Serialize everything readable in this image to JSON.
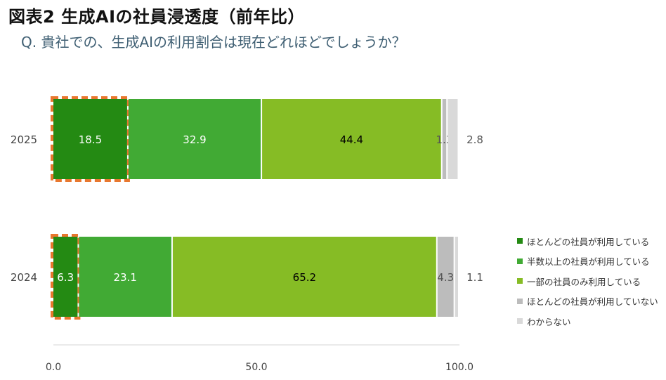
{
  "title": "図表2 生成AIの社員浸透度（前年比）",
  "subtitle": "Q. 貴社での、生成AIの利用割合は現在どれほどでしょうか？",
  "chart_data": {
    "type": "bar",
    "orientation": "horizontal",
    "stacked": true,
    "categories": [
      "2025",
      "2024"
    ],
    "series": [
      {
        "name": "ほとんどの社員が利用している",
        "values": [
          18.5,
          6.3
        ],
        "color": "#248a13",
        "label_color": "#ffffff",
        "label_values": [
          "18.5",
          "6.3"
        ]
      },
      {
        "name": "半数以上の社員が利用している",
        "values": [
          32.9,
          23.1
        ],
        "color": "#41aa34",
        "label_color": "#ffffff",
        "label_values": [
          "32.9",
          "23.1"
        ]
      },
      {
        "name": "一部の社員のみ利用している",
        "values": [
          44.4,
          65.2
        ],
        "color": "#86bc25",
        "label_color": "#000000",
        "label_values": [
          "44.4",
          "65.2"
        ]
      },
      {
        "name": "ほとんどの社員が利用していない",
        "values": [
          1.3,
          4.3
        ],
        "color": "#bcbcbc",
        "label_color": "#555555",
        "label_values": [
          "1.3",
          "4.3"
        ]
      },
      {
        "name": "わからない",
        "values": [
          2.8,
          1.1
        ],
        "color": "#d9d9d9",
        "label_color": "#555555",
        "label_values": [
          "2.8",
          "1.1"
        ]
      }
    ],
    "xlim": [
      0,
      100
    ],
    "x_ticks": [
      "0.0",
      "50.0",
      "100.0"
    ],
    "highlight_series": "ほとんどの社員が利用している",
    "highlight_color": "#e8772e",
    "legend_position": "right",
    "grid": false
  }
}
